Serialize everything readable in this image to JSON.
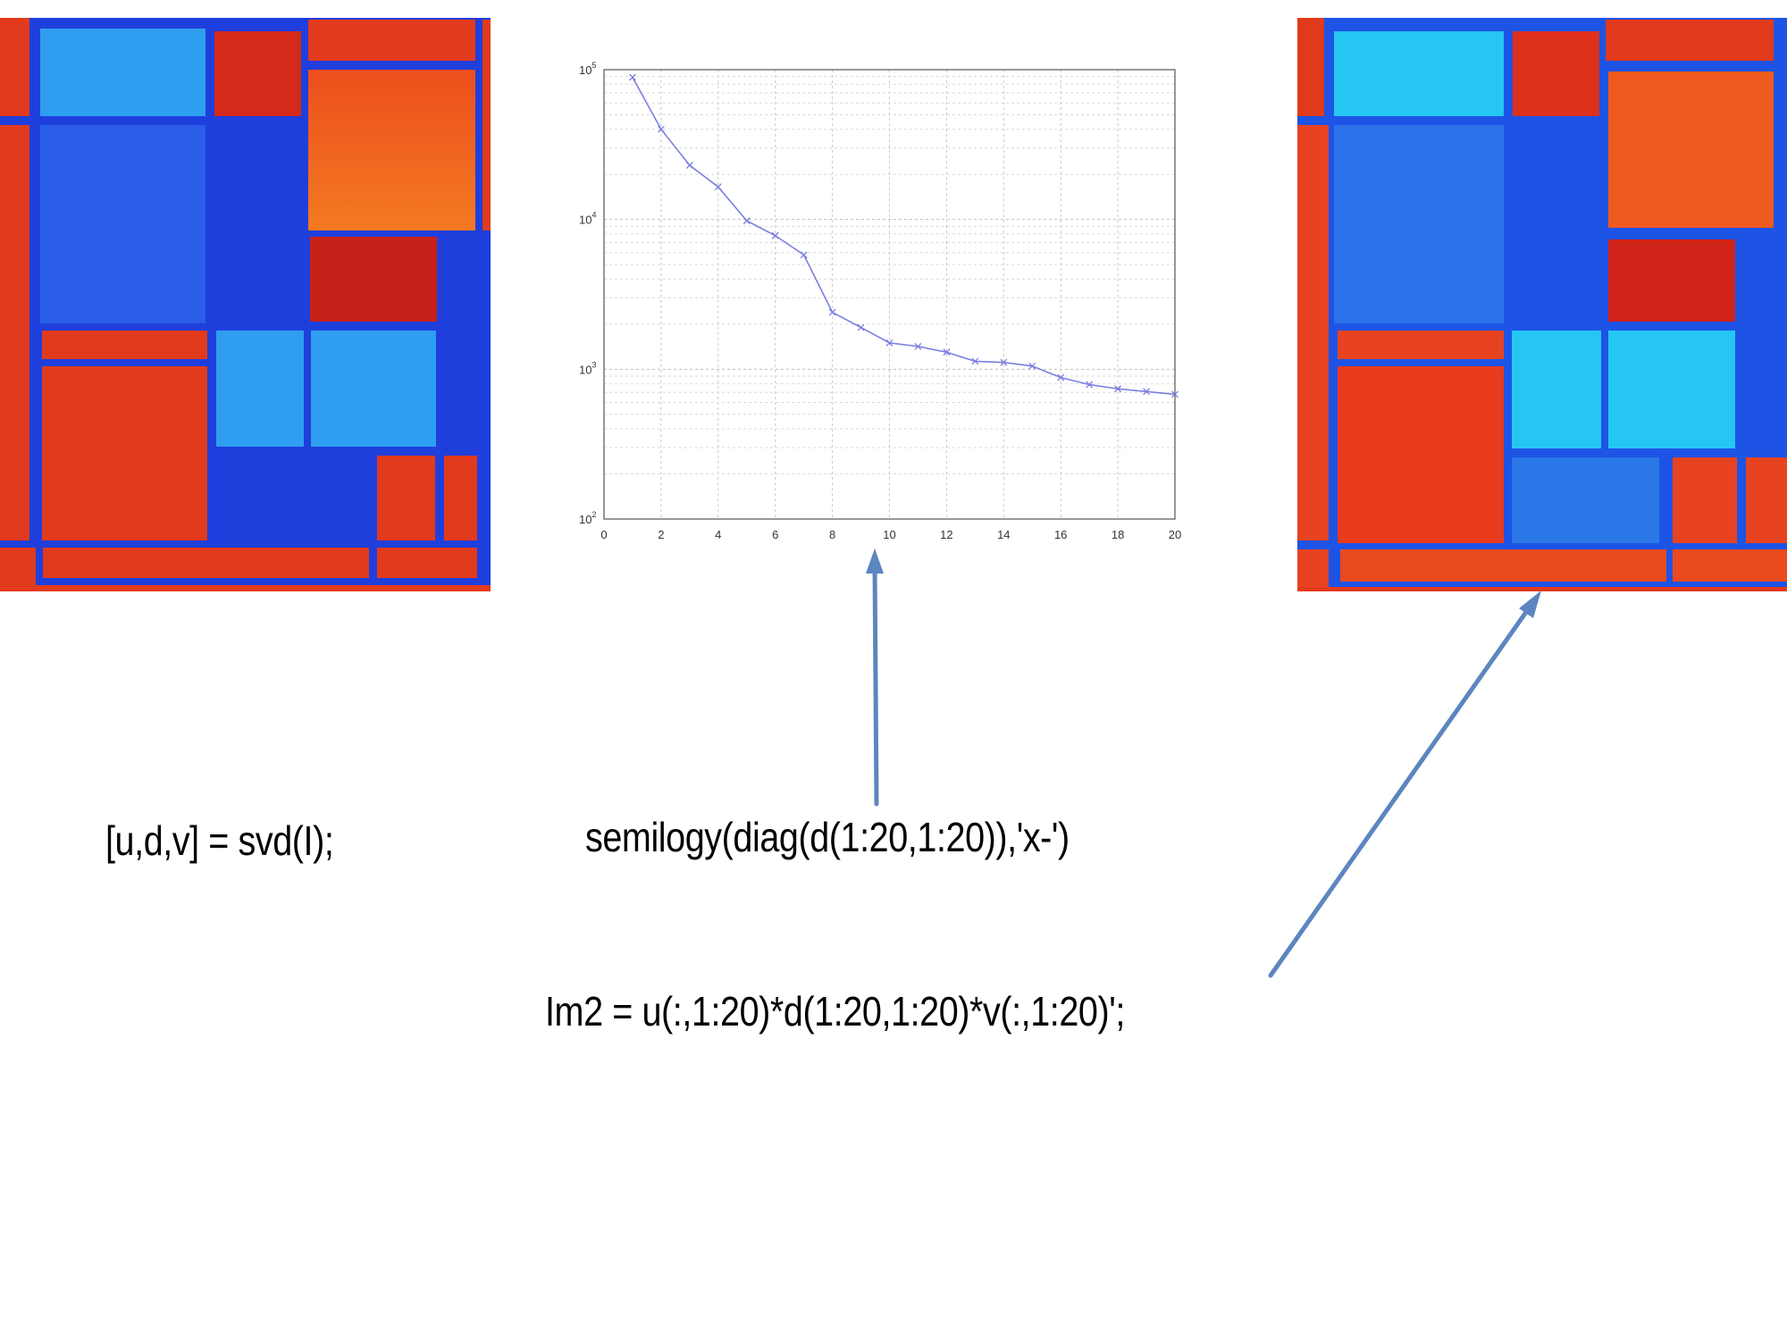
{
  "code": {
    "svd_line": "[u,d,v] = svd(I);",
    "semilogy_line": "semilogy(diag(d(1:20,1:20)),'x-')",
    "reconstruct_line": "Im2 = u(:,1:20)*d(1:20,1:20)*v(:,1:20)';"
  },
  "colors": {
    "background": "#ffffff",
    "deep_blue": "#1f3fdc",
    "light_blue": "#2e9ff0",
    "red": "#e23a1c",
    "dark_red": "#c8211a",
    "orange": "#ef5a1f",
    "cyan": "#25c6f2",
    "arrow": "#5b86bf",
    "plot_line": "#7b7fe0"
  },
  "images": {
    "original": {
      "name": "original-image"
    },
    "reconstruction": {
      "name": "rank-20-reconstruction"
    }
  },
  "chart_data": {
    "type": "line",
    "scale_y": "log",
    "marker": "x",
    "x": [
      1,
      2,
      3,
      4,
      5,
      6,
      7,
      8,
      9,
      10,
      11,
      12,
      13,
      14,
      15,
      16,
      17,
      18,
      19,
      20
    ],
    "series": [
      {
        "values": [
          89000,
          40000,
          23000,
          16500,
          9800,
          7800,
          5800,
          2400,
          1900,
          1500,
          1420,
          1300,
          1130,
          1110,
          1050,
          880,
          790,
          740,
          710,
          680
        ]
      }
    ],
    "xlim": [
      0,
      20
    ],
    "ylim": [
      100,
      100000
    ],
    "xticks": [
      "0",
      "2",
      "4",
      "6",
      "8",
      "10",
      "12",
      "14",
      "16",
      "18",
      "20"
    ],
    "yticks": [
      "10^2",
      "10^3",
      "10^4",
      "10^5"
    ],
    "grid": true,
    "title": "",
    "xlabel": "",
    "ylabel": ""
  }
}
